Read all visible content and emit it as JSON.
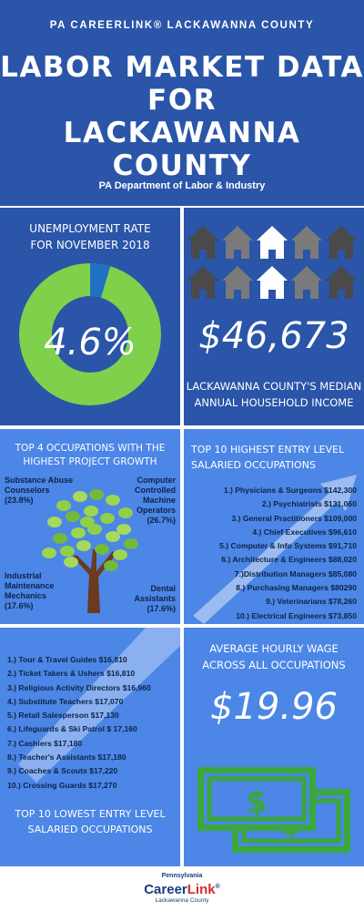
{
  "header": {
    "org": "PA CAREERLINK® LACKAWANNA COUNTY",
    "title_line1": "LABOR MARKET DATA",
    "title_line2": "FOR",
    "title_line3": "LACKAWANNA COUNTY",
    "subtitle": "PA Department of Labor & Industry"
  },
  "unemployment": {
    "label_line1": "UNEMPLOYMENT RATE",
    "label_line2": "FOR NOVEMBER 2018",
    "value_text": "4.6%",
    "rate": 0.046
  },
  "income": {
    "value_text": "$46,673",
    "label_line1": "LACKAWANNA COUNTY'S MEDIAN",
    "label_line2": "ANNUAL HOUSEHOLD INCOME"
  },
  "growth": {
    "title_line1": "TOP 4 OCCUPATIONS WITH THE",
    "title_line2": "HIGHEST PROJECT GROWTH",
    "occupations": [
      {
        "line1": "Substance Abuse",
        "line2": "Counselors",
        "line3": "(23.8%)"
      },
      {
        "line1": "Computer",
        "line2": "Controlled",
        "line3": "Machine",
        "line4": "Operators",
        "line5": "(26.7%)"
      },
      {
        "line1": "Industrial",
        "line2": "Maintenance",
        "line3": "Mechanics",
        "line4": "(17.6%)"
      },
      {
        "line1": "Dental",
        "line2": "Assistants",
        "line3": "(17.6%)"
      }
    ]
  },
  "top10": {
    "title_line1": "TOP 10 HIGHEST ENTRY LEVEL",
    "title_line2": "SALARIED OCCUPATIONS",
    "items": [
      "1.) Physicians & Surgeons $142,300",
      "2.) Psychiatrists $131,060",
      "3.) General Practitioners $109,000",
      "4.) Chief Executives $96,610",
      "5.) Computer & Info Systems $91,710",
      "6.) Architecture & Engineers $88,020",
      "7.)Distribution Managers $85,080",
      "8.) Purchasing Managers $80290",
      "9.) Veterinarians $78,260",
      "10.) Electrical Engineers $73,850"
    ]
  },
  "lowest": {
    "items": [
      "1.) Tour & Travel Guides $16,810",
      "2.) Ticket Takers & Ushers $16,810",
      "3.) Religious Activity Directors $16,960",
      "4.) Substitute Teachers $17,070",
      "5.) Retail Salesperson $17,130",
      "6.) Lifeguards & Ski Patrol $ 17,160",
      "7.) Cashiers $17,180",
      "8.) Teacher's Assistants $17,180",
      "9.) Coaches & Scouts  $17,220",
      "10.) Crossing Guards $17,270"
    ],
    "title_line1": "TOP 10 LOWEST ENTRY LEVEL",
    "title_line2": "SALARIED OCCUPATIONS"
  },
  "hourly": {
    "title_line1": "AVERAGE HOURLY WAGE",
    "title_line2": "ACROSS ALL OCCUPATIONS",
    "value_text": "$19.96",
    "bill_symbol": "$"
  },
  "footer": {
    "logo_state": "Pennsylvania",
    "logo_career": "Career",
    "logo_link": "Link",
    "logo_mark": "®",
    "logo_county": "Lackawanna County"
  },
  "colors": {
    "header_bg": "#2a55a8",
    "panel_light": "#4c86e6",
    "donut_green": "#7fd14b",
    "donut_blue": "#2070c4",
    "text_dark": "#0d2346",
    "money_green": "#3aa83a"
  }
}
